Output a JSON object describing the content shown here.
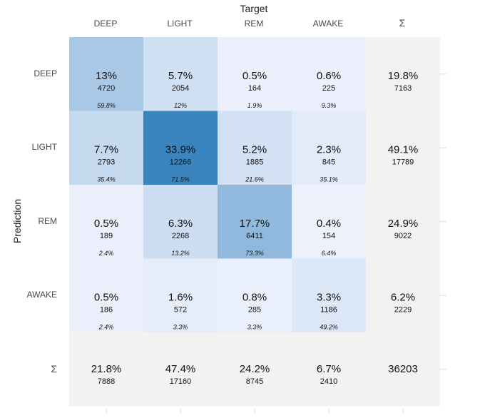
{
  "chart_data": {
    "type": "heatmap",
    "xlabel": "Target",
    "ylabel": "Prediction",
    "categories": [
      "DEEP",
      "LIGHT",
      "REM",
      "AWAKE"
    ],
    "sum_label": "Σ",
    "cells": [
      [
        {
          "pct": "13%",
          "count": "4720",
          "col_pct": "59.8%",
          "value": 0.13
        },
        {
          "pct": "5.7%",
          "count": "2054",
          "col_pct": "12%",
          "value": 0.057
        },
        {
          "pct": "0.5%",
          "count": "164",
          "col_pct": "1.9%",
          "value": 0.005
        },
        {
          "pct": "0.6%",
          "count": "225",
          "col_pct": "9.3%",
          "value": 0.006
        }
      ],
      [
        {
          "pct": "7.7%",
          "count": "2793",
          "col_pct": "35.4%",
          "value": 0.077
        },
        {
          "pct": "33.9%",
          "count": "12266",
          "col_pct": "71.5%",
          "value": 0.339
        },
        {
          "pct": "5.2%",
          "count": "1885",
          "col_pct": "21.6%",
          "value": 0.052
        },
        {
          "pct": "2.3%",
          "count": "845",
          "col_pct": "35.1%",
          "value": 0.023
        }
      ],
      [
        {
          "pct": "0.5%",
          "count": "189",
          "col_pct": "2.4%",
          "value": 0.005
        },
        {
          "pct": "6.3%",
          "count": "2268",
          "col_pct": "13.2%",
          "value": 0.063
        },
        {
          "pct": "17.7%",
          "count": "6411",
          "col_pct": "73.3%",
          "value": 0.177
        },
        {
          "pct": "0.4%",
          "count": "154",
          "col_pct": "6.4%",
          "value": 0.004
        }
      ],
      [
        {
          "pct": "0.5%",
          "count": "186",
          "col_pct": "2.4%",
          "value": 0.005
        },
        {
          "pct": "1.6%",
          "count": "572",
          "col_pct": "3.3%",
          "value": 0.016
        },
        {
          "pct": "0.8%",
          "count": "285",
          "col_pct": "3.3%",
          "value": 0.008
        },
        {
          "pct": "3.3%",
          "count": "1186",
          "col_pct": "49.2%",
          "value": 0.033
        }
      ]
    ],
    "row_sums": [
      {
        "pct": "19.8%",
        "count": "7163"
      },
      {
        "pct": "49.1%",
        "count": "17789"
      },
      {
        "pct": "24.9%",
        "count": "9022"
      },
      {
        "pct": "6.2%",
        "count": "2229"
      }
    ],
    "col_sums": [
      {
        "pct": "21.8%",
        "count": "7888"
      },
      {
        "pct": "47.4%",
        "count": "17160"
      },
      {
        "pct": "24.2%",
        "count": "8745"
      },
      {
        "pct": "6.7%",
        "count": "2410"
      }
    ],
    "total": "36203",
    "colors": {
      "low": "#eef2fd",
      "high": "#3a85c0",
      "sum_background": "#f2f2f2",
      "text": "#111111"
    }
  }
}
